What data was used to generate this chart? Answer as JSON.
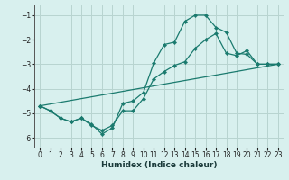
{
  "xlabel": "Humidex (Indice chaleur)",
  "bg_color": "#d8f0ee",
  "grid_color": "#b8d4d0",
  "line_color": "#1a7a6e",
  "xlim": [
    -0.5,
    23.5
  ],
  "ylim": [
    -6.4,
    -0.6
  ],
  "xticks": [
    0,
    1,
    2,
    3,
    4,
    5,
    6,
    7,
    8,
    9,
    10,
    11,
    12,
    13,
    14,
    15,
    16,
    17,
    18,
    19,
    20,
    21,
    22,
    23
  ],
  "yticks": [
    -6,
    -5,
    -4,
    -3,
    -2,
    -1
  ],
  "line1_x": [
    0,
    1,
    2,
    3,
    4,
    5,
    6,
    7,
    8,
    9,
    10,
    11,
    12,
    13,
    14,
    15,
    16,
    17,
    18,
    19,
    20,
    21,
    22,
    23
  ],
  "line1_y": [
    -4.7,
    -4.9,
    -5.2,
    -5.35,
    -5.2,
    -5.45,
    -5.85,
    -5.6,
    -4.6,
    -4.5,
    -4.15,
    -2.95,
    -2.2,
    -2.1,
    -1.25,
    -1.0,
    -1.0,
    -1.5,
    -1.7,
    -2.55,
    -2.6,
    -3.0,
    -3.0,
    -3.0
  ],
  "line2_x": [
    0,
    1,
    2,
    3,
    4,
    5,
    6,
    7,
    8,
    9,
    10,
    11,
    12,
    13,
    14,
    15,
    16,
    17,
    18,
    19,
    20,
    21,
    22,
    23
  ],
  "line2_y": [
    -4.7,
    -4.9,
    -5.2,
    -5.35,
    -5.2,
    -5.5,
    -5.7,
    -5.5,
    -4.9,
    -4.9,
    -4.4,
    -3.6,
    -3.3,
    -3.05,
    -2.9,
    -2.35,
    -2.0,
    -1.75,
    -2.55,
    -2.65,
    -2.45,
    -3.0,
    -3.0,
    -3.0
  ],
  "line3_x": [
    0,
    23
  ],
  "line3_y": [
    -4.7,
    -3.0
  ],
  "lw": 0.9,
  "ms": 2.2,
  "tick_fontsize": 5.5,
  "xlabel_fontsize": 6.5
}
